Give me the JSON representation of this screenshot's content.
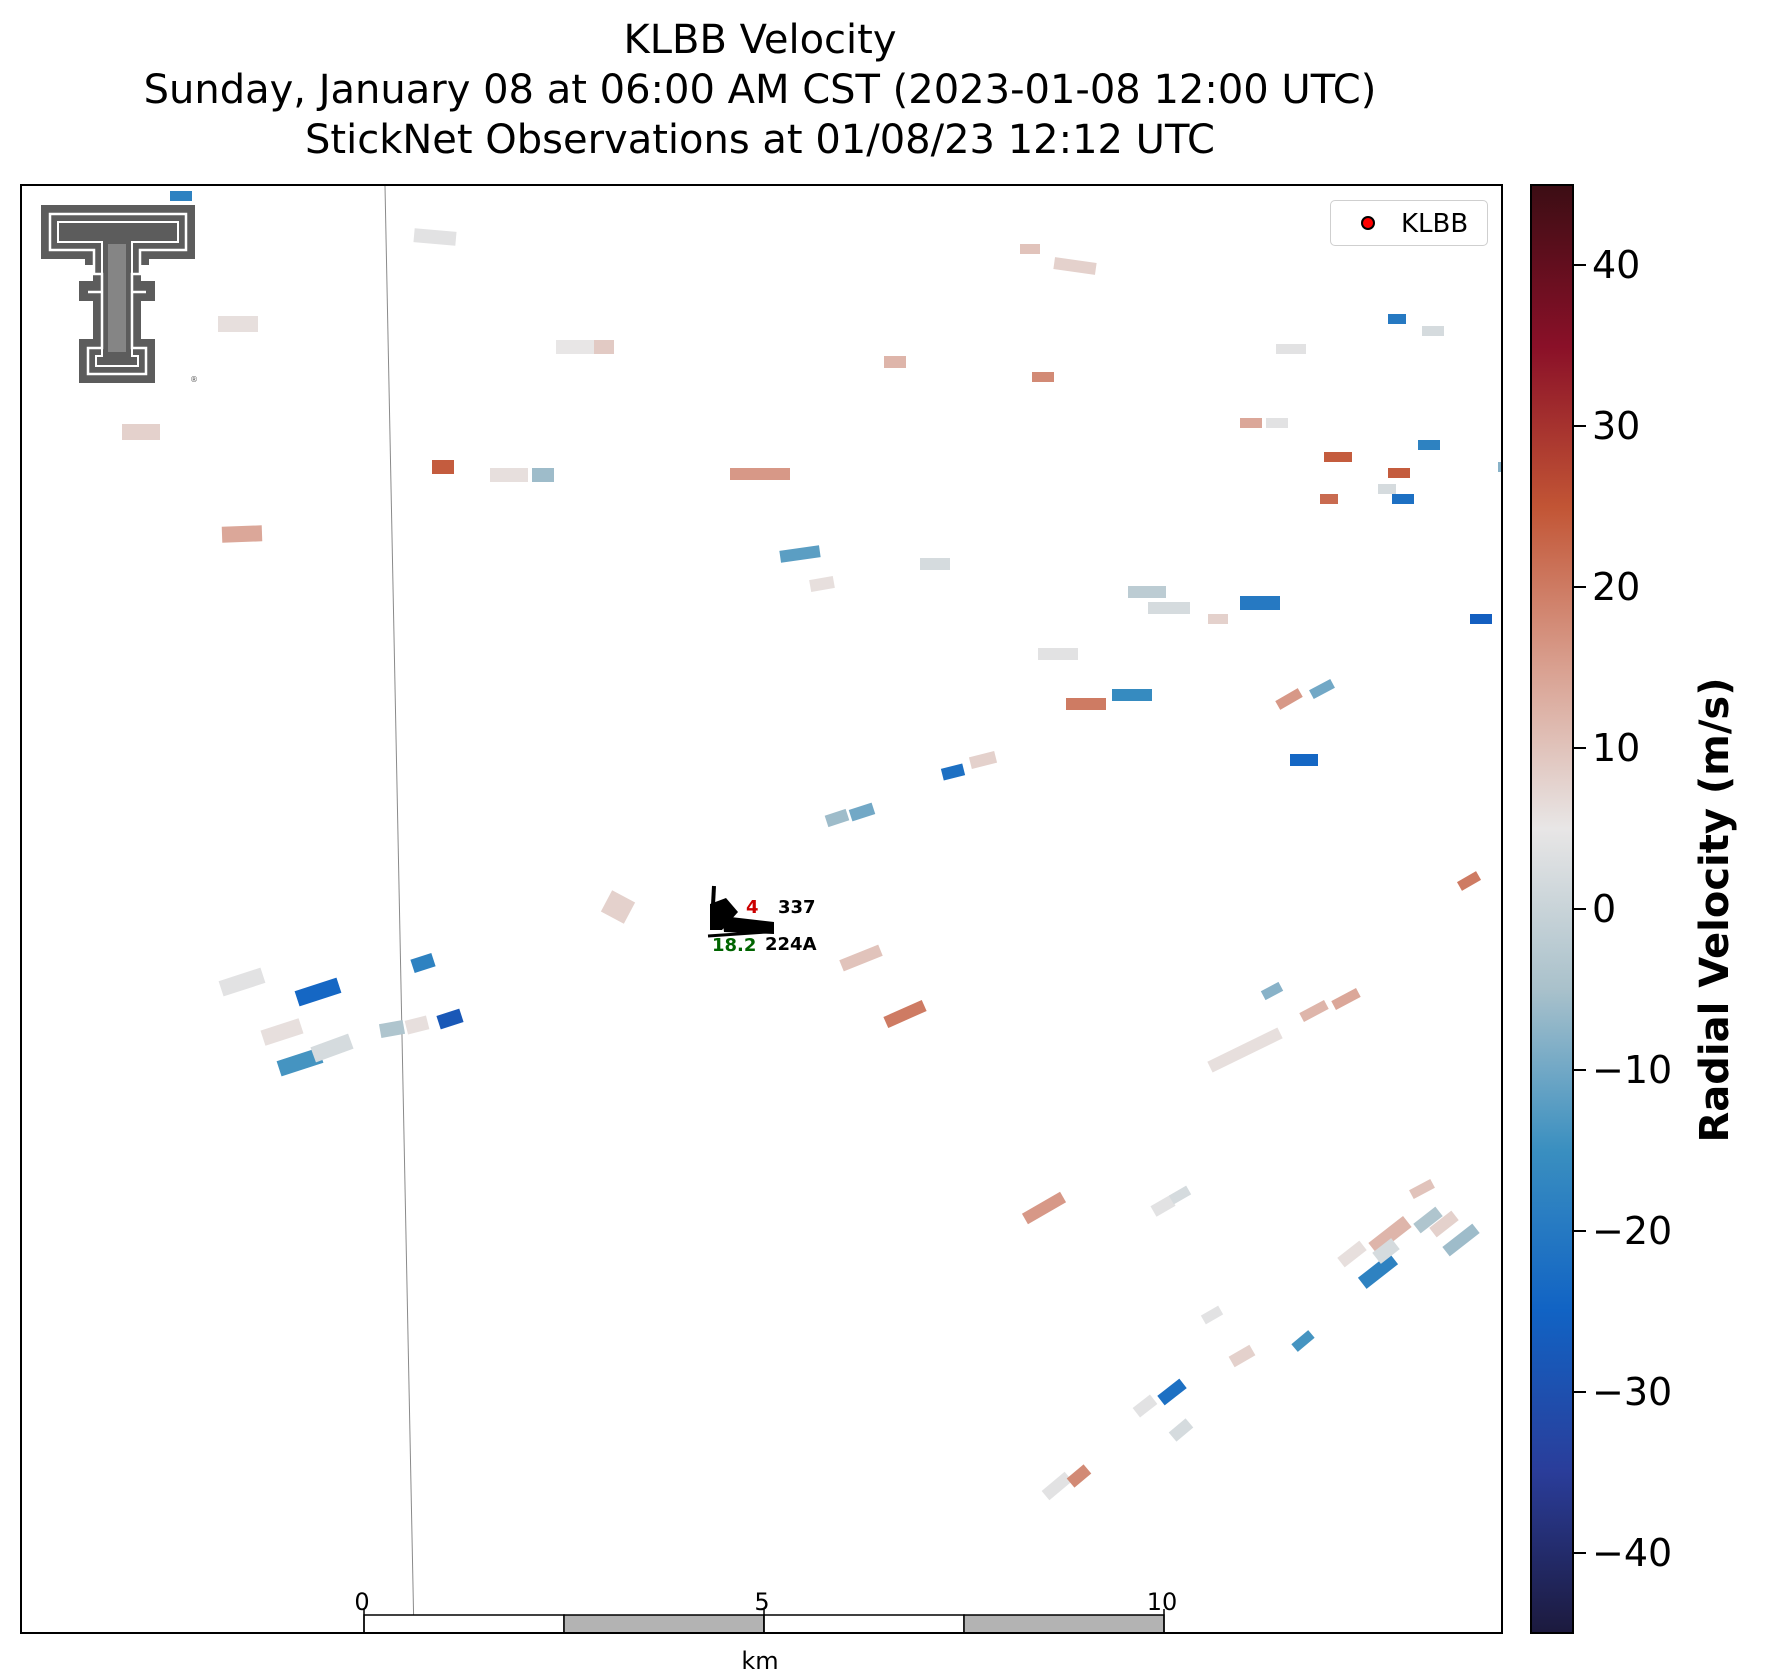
{
  "title": {
    "line1": "KLBB Velocity",
    "line2": "Sunday, January 08 at 06:00 AM CST (2023-01-08 12:00 UTC)",
    "line3": "StickNet Observations at 01/08/23 12:12 UTC"
  },
  "legend": {
    "label": "KLBB",
    "marker_color": "#ff0000"
  },
  "colorbar": {
    "label": "Radial Velocity (m/s)",
    "min": -45,
    "max": 45,
    "ticks": [
      40,
      30,
      20,
      10,
      0,
      -10,
      -20,
      -30,
      -40
    ],
    "tick_labels": [
      "40",
      "30",
      "20",
      "10",
      "0",
      "−10",
      "−20",
      "−30",
      "−40"
    ],
    "colormap": [
      "#1c1a3e",
      "#2a3d9a",
      "#1163c4",
      "#3a8fc0",
      "#a9c1cb",
      "#e8e6e6",
      "#d9a090",
      "#c25535",
      "#8a1028",
      "#3c0d14"
    ]
  },
  "scalebar": {
    "labels": [
      "0",
      "5",
      "10"
    ],
    "unit": "km",
    "segment_colors": [
      "#ffffff",
      "#b3b3b3",
      "#ffffff",
      "#b3b3b3"
    ]
  },
  "station": {
    "id_top": "337",
    "id_bottom": "224A",
    "temp_partial": "4",
    "wind_value": "18.2",
    "temp_color": "#cc0000",
    "wind_color": "#006400"
  },
  "logo": {
    "icon": "texas-tech-double-t-logo"
  },
  "radar_gates_velocity_ms": [
    -18,
    4,
    6,
    8,
    5,
    9,
    14,
    24,
    12,
    8,
    10,
    18,
    16,
    6,
    -6,
    2,
    -12,
    6,
    -22,
    8,
    -24,
    4,
    6,
    -14,
    2,
    6,
    -28,
    -4,
    20,
    10,
    8,
    -18,
    -6,
    -10,
    6,
    12,
    14,
    -8,
    4,
    2,
    16,
    4,
    8,
    10,
    -4,
    -6,
    12,
    -18,
    2,
    6,
    8,
    4,
    -22,
    2,
    4,
    18,
    -14,
    20,
    16,
    -10,
    -24,
    24,
    -8,
    2,
    -20,
    -26,
    8,
    14,
    4,
    2,
    -22,
    4,
    22,
    24,
    -18,
    -20,
    4,
    2,
    20,
    -16,
    -2,
    2,
    -26,
    8,
    4,
    -16
  ]
}
